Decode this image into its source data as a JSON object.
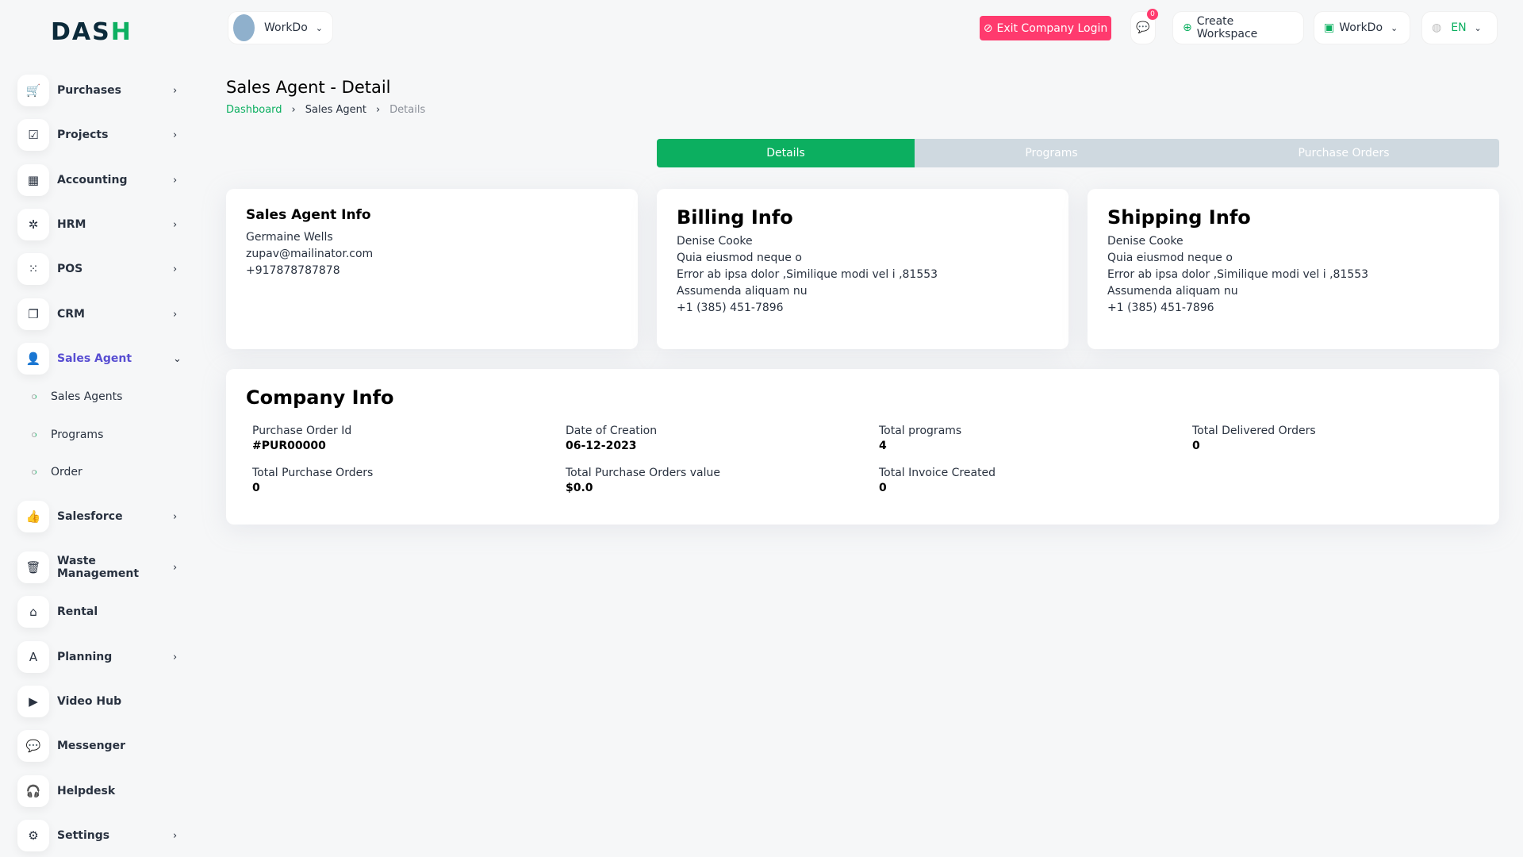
{
  "logo": {
    "text": "DASH"
  },
  "header": {
    "company": "WorkDo",
    "exit_label": "Exit Company Login",
    "messages_count": "0",
    "create_workspace": "Create Workspace",
    "workspace": "WorkDo",
    "language": "EN"
  },
  "sidebar": {
    "items": [
      {
        "label": "Purchases",
        "icon": "cart-icon",
        "glyph": "🛒",
        "chevron": "›"
      },
      {
        "label": "Projects",
        "icon": "checkbox-icon",
        "glyph": "☑",
        "chevron": "›"
      },
      {
        "label": "Accounting",
        "icon": "grid-icon",
        "glyph": "▦",
        "chevron": "›"
      },
      {
        "label": "HRM",
        "icon": "network-icon",
        "glyph": "✲",
        "chevron": "›"
      },
      {
        "label": "POS",
        "icon": "dots-grid-icon",
        "glyph": "⁙",
        "chevron": "›"
      },
      {
        "label": "CRM",
        "icon": "layers-icon",
        "glyph": "❐",
        "chevron": "›"
      },
      {
        "label": "Sales Agent",
        "icon": "user-check-icon",
        "glyph": "👤",
        "chevron": "⌄"
      },
      {
        "label": "Salesforce",
        "icon": "thumbs-up-icon",
        "glyph": "👍",
        "chevron": "›"
      },
      {
        "label": "Waste Management",
        "icon": "trash-icon",
        "glyph": "🗑",
        "chevron": "›"
      },
      {
        "label": "Rental",
        "icon": "home-icon",
        "glyph": "⌂",
        "chevron": ""
      },
      {
        "label": "Planning",
        "icon": "planning-icon",
        "glyph": "A",
        "chevron": "›"
      },
      {
        "label": "Video Hub",
        "icon": "video-icon",
        "glyph": "▶",
        "chevron": ""
      },
      {
        "label": "Messenger",
        "icon": "chat-icon",
        "glyph": "💬",
        "chevron": ""
      },
      {
        "label": "Helpdesk",
        "icon": "headset-icon",
        "glyph": "🎧",
        "chevron": ""
      },
      {
        "label": "Settings",
        "icon": "gear-icon",
        "glyph": "⚙",
        "chevron": "›"
      }
    ],
    "sub_items": [
      "Sales Agents",
      "Programs",
      "Order"
    ]
  },
  "page": {
    "title": "Sales Agent - Detail",
    "breadcrumb": [
      "Dashboard",
      "Sales Agent",
      "Details"
    ],
    "sep": "›"
  },
  "tabs": [
    "Details",
    "Programs",
    "Purchase Orders"
  ],
  "sales_agent": {
    "title": "Sales Agent Info",
    "name": "Germaine Wells",
    "email": "zupav@mailinator.com",
    "phone": "+917878787878"
  },
  "billing": {
    "title": "Billing Info",
    "lines": [
      "Denise Cooke",
      "Quia eiusmod neque o",
      "Error ab ipsa dolor ,Similique modi vel i ,81553",
      "Assumenda aliquam nu",
      "+1 (385) 451-7896"
    ]
  },
  "shipping": {
    "title": "Shipping Info",
    "lines": [
      "Denise Cooke",
      "Quia eiusmod neque o",
      "Error ab ipsa dolor ,Similique modi vel i ,81553",
      "Assumenda aliquam nu",
      "+1 (385) 451-7896"
    ]
  },
  "company": {
    "title": "Company Info",
    "fields": [
      {
        "label": "Purchase Order Id",
        "value": "#PUR00000"
      },
      {
        "label": "Date of Creation",
        "value": "06-12-2023"
      },
      {
        "label": "Total programs",
        "value": "4"
      },
      {
        "label": "Total Delivered Orders",
        "value": "0"
      },
      {
        "label": "Total Purchase Orders",
        "value": "0"
      },
      {
        "label": "Total Purchase Orders value",
        "value": "$0.0"
      },
      {
        "label": "Total Invoice Created",
        "value": "0"
      }
    ]
  },
  "colors": {
    "accent": "#0caf60",
    "danger": "#ff3a6e",
    "active_nav": "#584ed2",
    "tab_inactive": "#cfd9e0"
  }
}
